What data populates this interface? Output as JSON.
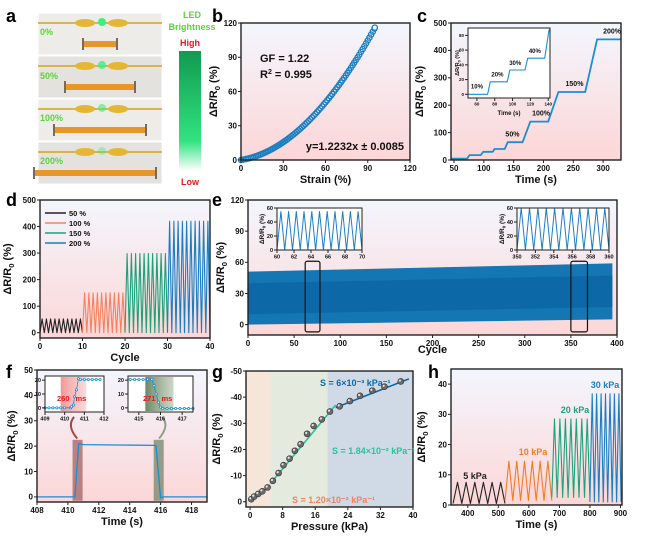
{
  "colors": {
    "blue": "#1a7fc1",
    "darkblue": "#0a6aa8",
    "black": "#222222",
    "orange_red": "#f4825e",
    "orange": "#ef7d22",
    "green": "#1aa37a",
    "teal": "#29c39a",
    "led_green": "#5ad43a",
    "red": "#e8181c",
    "bg_top": "#f3f6fd",
    "bg_bottom": "#fcd9da"
  },
  "panel_labels": [
    "a",
    "b",
    "c",
    "d",
    "e",
    "f",
    "g",
    "h"
  ],
  "panel_a": {
    "strain_labels": [
      "0%",
      "50%",
      "100%",
      "200%"
    ],
    "bar_title_1": "LED",
    "bar_title_2": "Brightness",
    "high": "High",
    "low": "Low"
  },
  "chart_data": [
    {
      "id": "b",
      "type": "scatter",
      "xlabel": "Strain (%)",
      "ylabel": "ΔR/R0 (%)",
      "xlim": [
        0,
        120
      ],
      "ylim": [
        0,
        120
      ],
      "xticks": [
        0,
        30,
        60,
        90,
        120
      ],
      "yticks": [
        0,
        30,
        60,
        90,
        120
      ],
      "annotations": [
        "GF = 1.22",
        "R² = 0.995",
        "y=1.2232x ± 0.0085"
      ],
      "fit": {
        "slope": 1.2232,
        "x_range": [
          0,
          95
        ]
      },
      "points": [
        [
          0,
          0
        ],
        [
          5,
          4
        ],
        [
          10,
          9
        ],
        [
          15,
          14
        ],
        [
          20,
          20
        ],
        [
          25,
          26
        ],
        [
          30,
          32
        ],
        [
          35,
          38
        ],
        [
          40,
          44
        ],
        [
          45,
          50
        ],
        [
          50,
          56
        ],
        [
          55,
          62
        ],
        [
          60,
          68
        ],
        [
          65,
          74
        ],
        [
          70,
          81
        ],
        [
          75,
          87
        ],
        [
          80,
          94
        ],
        [
          85,
          101
        ],
        [
          90,
          108
        ],
        [
          95,
          116
        ]
      ]
    },
    {
      "id": "c",
      "type": "line",
      "xlabel": "Time (s)",
      "ylabel": "ΔR/R0 (%)",
      "xlim": [
        45,
        330
      ],
      "ylim": [
        0,
        500
      ],
      "xticks": [
        50,
        100,
        150,
        200,
        250,
        300
      ],
      "yticks": [
        0,
        100,
        200,
        300,
        400,
        500
      ],
      "points": [
        [
          45,
          5
        ],
        [
          72,
          5
        ],
        [
          76,
          18
        ],
        [
          95,
          18
        ],
        [
          99,
          30
        ],
        [
          115,
          30
        ],
        [
          118,
          40
        ],
        [
          135,
          40
        ],
        [
          140,
          65
        ],
        [
          165,
          65
        ],
        [
          178,
          140
        ],
        [
          208,
          140
        ],
        [
          225,
          248
        ],
        [
          270,
          248
        ],
        [
          290,
          440
        ],
        [
          330,
          440
        ]
      ],
      "labels": [
        {
          "text": "50%",
          "x": 148,
          "y": 85
        },
        {
          "text": "100%",
          "x": 196,
          "y": 162
        },
        {
          "text": "150%",
          "x": 252,
          "y": 270
        },
        {
          "text": "200%",
          "x": 315,
          "y": 462
        }
      ],
      "inset": {
        "xlabel": "Time (s)",
        "ylabel": "ΔR/R0 (%)",
        "xlim": [
          50,
          142
        ],
        "ylim": [
          -5,
          90
        ],
        "xticks": [
          60,
          80,
          100,
          120,
          140
        ],
        "yticks": [
          0,
          20,
          40,
          60,
          80
        ],
        "points": [
          [
            50,
            0
          ],
          [
            72,
            0
          ],
          [
            75,
            17
          ],
          [
            94,
            17
          ],
          [
            97,
            33
          ],
          [
            114,
            33
          ],
          [
            117,
            49
          ],
          [
            136,
            49
          ],
          [
            141,
            88
          ]
        ],
        "labels": [
          {
            "text": "10%",
            "x": 60,
            "y": 8
          },
          {
            "text": "20%",
            "x": 83,
            "y": 24
          },
          {
            "text": "30%",
            "x": 103,
            "y": 40
          },
          {
            "text": "40%",
            "x": 125,
            "y": 56
          }
        ]
      }
    },
    {
      "id": "d",
      "type": "line",
      "xlabel": "Cycle",
      "ylabel": "ΔR/R0 (%)",
      "xlim": [
        0,
        40
      ],
      "ylim": [
        -20,
        500
      ],
      "xticks": [
        0,
        10,
        20,
        30,
        40
      ],
      "yticks": [
        0,
        100,
        200,
        300,
        400,
        500
      ],
      "legend": "top-left",
      "series": [
        {
          "name": "50 %",
          "color_key": "black",
          "start": 0,
          "end": 10,
          "cycles": 10,
          "peak": 52
        },
        {
          "name": "100 %",
          "color_key": "orange_red",
          "start": 10,
          "end": 20,
          "cycles": 10,
          "peak": 150
        },
        {
          "name": "150 %",
          "color_key": "green",
          "start": 20,
          "end": 30,
          "cycles": 10,
          "peak": 298
        },
        {
          "name": "200 %",
          "color_key": "blue",
          "start": 30,
          "end": 40,
          "cycles": 10,
          "peak": 420
        }
      ]
    },
    {
      "id": "e",
      "type": "area",
      "xlabel": "Cycle",
      "ylabel": "ΔR/R0 (%)",
      "xlim": [
        0,
        400
      ],
      "ylim": [
        -10,
        120
      ],
      "xticks": [
        0,
        50,
        100,
        150,
        200,
        250,
        300,
        350,
        400
      ],
      "yticks": [
        0,
        30,
        60,
        90,
        120
      ],
      "band": {
        "x_range": [
          0,
          395
        ],
        "upper_start": 51,
        "upper_end": 59,
        "lower_start": 0,
        "lower_end": 5
      },
      "boxes": [
        [
          62,
          78
        ],
        [
          350,
          368
        ]
      ],
      "insets": [
        {
          "xlim": [
            60,
            70
          ],
          "ylim": [
            0,
            60
          ],
          "xticks": [
            60,
            62,
            64,
            66,
            68,
            70
          ],
          "yticks": [
            0,
            20,
            40,
            60
          ],
          "peak": 55,
          "ylabel": "ΔR/R0 (%)"
        },
        {
          "xlim": [
            350,
            360
          ],
          "ylim": [
            0,
            60
          ],
          "xticks": [
            350,
            352,
            354,
            356,
            358,
            360
          ],
          "yticks": [
            0,
            20,
            40,
            60
          ],
          "peak": 60,
          "ylabel": "ΔR/R0 (%)"
        }
      ]
    },
    {
      "id": "f",
      "type": "line",
      "xlabel": "Time (s)",
      "ylabel": "ΔR/R0 (%)",
      "xlim": [
        408,
        419
      ],
      "ylim": [
        -2,
        50
      ],
      "xticks": [
        408,
        410,
        412,
        414,
        416,
        418
      ],
      "yticks": [
        0,
        10,
        20,
        30,
        40,
        50
      ],
      "points": [
        [
          408,
          0
        ],
        [
          410.45,
          0
        ],
        [
          410.7,
          21
        ],
        [
          411,
          20.6
        ],
        [
          415.7,
          20.3
        ],
        [
          416.0,
          -0.4
        ],
        [
          416.2,
          0
        ],
        [
          419,
          0
        ]
      ],
      "insets": [
        {
          "xlim": [
            409,
            412
          ],
          "ylim": [
            -3,
            23
          ],
          "xticks": [
            409,
            410,
            411,
            412
          ],
          "yticks": [
            0,
            10,
            20
          ],
          "label": "260",
          "unit": "ms",
          "points": [
            [
              409,
              0
            ],
            [
              409.2,
              0
            ],
            [
              409.4,
              0
            ],
            [
              409.6,
              0
            ],
            [
              409.8,
              0
            ],
            [
              410,
              0
            ],
            [
              410.3,
              0
            ],
            [
              410.35,
              0.8
            ],
            [
              410.45,
              2
            ],
            [
              410.5,
              8
            ],
            [
              410.6,
              13
            ],
            [
              410.7,
              21
            ],
            [
              410.8,
              20.5
            ],
            [
              411,
              20.5
            ],
            [
              411.2,
              20.5
            ],
            [
              411.4,
              20.5
            ],
            [
              411.6,
              20.5
            ],
            [
              411.8,
              20.5
            ]
          ],
          "highlight": [
            409.8,
            411.1
          ]
        },
        {
          "xlim": [
            414.5,
            417.5
          ],
          "ylim": [
            -3,
            23
          ],
          "xticks": [
            415,
            416,
            417
          ],
          "yticks": [
            0,
            10,
            20
          ],
          "label": "271",
          "unit": "ms",
          "points": [
            [
              414.6,
              20.5
            ],
            [
              414.8,
              20.5
            ],
            [
              415,
              20.5
            ],
            [
              415.2,
              20.5
            ],
            [
              415.4,
              20.5
            ],
            [
              415.6,
              20.5
            ],
            [
              415.7,
              16
            ],
            [
              415.8,
              10
            ],
            [
              415.9,
              4
            ],
            [
              416,
              0.5
            ],
            [
              416.1,
              -0.5
            ],
            [
              416.3,
              -0.5
            ],
            [
              416.5,
              -0.5
            ],
            [
              416.7,
              -0.5
            ],
            [
              416.9,
              -0.5
            ],
            [
              417.1,
              -0.5
            ],
            [
              417.3,
              -0.5
            ],
            [
              417.5,
              -0.5
            ]
          ],
          "highlight": [
            415.3,
            416.6
          ]
        }
      ]
    },
    {
      "id": "g",
      "type": "scatter",
      "xlabel": "Pressure (kPa)",
      "ylabel": "ΔR/R0 (%)",
      "xlim": [
        -1,
        40
      ],
      "ylim": [
        2,
        -50
      ],
      "xticks": [
        0,
        8,
        16,
        24,
        32,
        40
      ],
      "yticks": [
        0,
        -10,
        -20,
        -30,
        -40,
        -50
      ],
      "regions": [
        [
          -1,
          5,
          "#f4e1d2"
        ],
        [
          5,
          19,
          "#dfe6d8"
        ],
        [
          19,
          40,
          "#c8d2e2"
        ]
      ],
      "fits": [
        {
          "label": "S = 1.20×10⁻² kPa⁻¹",
          "color_key": "orange_red",
          "from": [
            0,
            0
          ],
          "to": [
            5,
            -6
          ]
        },
        {
          "label": "S = 1.84×10⁻² kPa⁻¹",
          "color_key": "teal",
          "from": [
            5,
            -7
          ],
          "to": [
            21,
            -37
          ]
        },
        {
          "label": "S = 6×10⁻³ kPa⁻¹",
          "color_key": "darkblue",
          "from": [
            21,
            -36
          ],
          "to": [
            39,
            -47
          ]
        }
      ],
      "points": [
        [
          0.3,
          -1
        ],
        [
          1,
          -2
        ],
        [
          2,
          -3
        ],
        [
          3,
          -4
        ],
        [
          4.3,
          -5.5
        ],
        [
          5.6,
          -8
        ],
        [
          7,
          -11
        ],
        [
          8.2,
          -14
        ],
        [
          9.7,
          -16.5
        ],
        [
          11,
          -19.5
        ],
        [
          12.4,
          -22
        ],
        [
          14,
          -26
        ],
        [
          15.6,
          -29
        ],
        [
          17.6,
          -31.5
        ],
        [
          19.6,
          -34.5
        ],
        [
          22,
          -36.5
        ],
        [
          24.5,
          -38.5
        ],
        [
          27,
          -40.5
        ],
        [
          30,
          -42.5
        ],
        [
          33,
          -44
        ],
        [
          37,
          -46
        ]
      ]
    },
    {
      "id": "h",
      "type": "line",
      "xlabel": "Time (s)",
      "ylabel": "ΔR/R0 (%)",
      "xlim": [
        345,
        905
      ],
      "ylim": [
        0,
        45
      ],
      "xticks": [
        400,
        500,
        600,
        700,
        800,
        900
      ],
      "yticks": [
        0,
        10,
        20,
        30,
        40
      ],
      "series": [
        {
          "name": "5 kPa",
          "color_key": "black",
          "start": 352,
          "end": 522,
          "cycles": 6,
          "peak": 7.5,
          "base": 0.5
        },
        {
          "name": "10 kPa",
          "color_key": "orange",
          "start": 522,
          "end": 675,
          "cycles": 6,
          "peak": 14.5,
          "base": 1.5
        },
        {
          "name": "20 kPa",
          "color_key": "green",
          "start": 675,
          "end": 800,
          "cycles": 7,
          "peak": 28.5,
          "base": 2.5
        },
        {
          "name": "30 kPa",
          "color_key": "blue",
          "start": 800,
          "end": 902,
          "cycles": 7,
          "peak": 36.8,
          "base": 1
        }
      ]
    }
  ]
}
